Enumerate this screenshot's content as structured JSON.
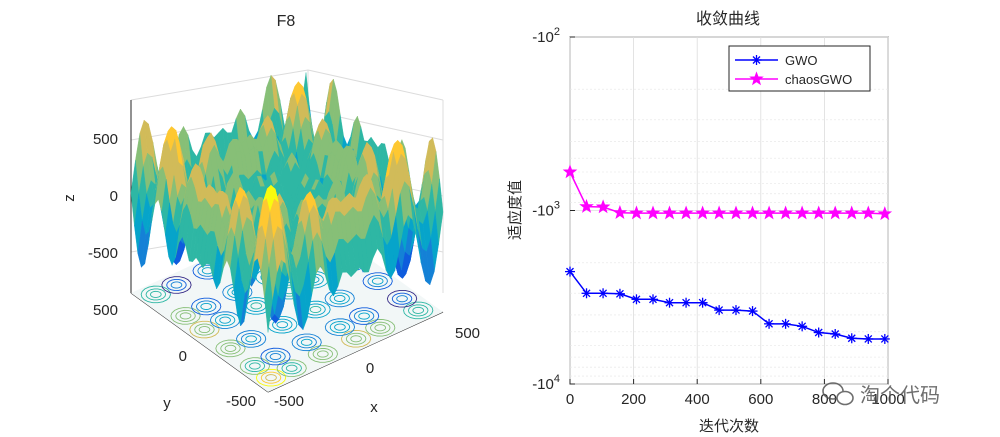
{
  "chart_data": [
    {
      "type": "surface3d",
      "title": "F8",
      "xlabel": "x",
      "ylabel": "y",
      "zlabel": "z",
      "x_ticks": [
        "-500",
        "0",
        "500"
      ],
      "y_ticks": [
        "-500",
        "0",
        "500"
      ],
      "z_ticks": [
        "-500",
        "0",
        "500"
      ],
      "xlim": [
        -500,
        500
      ],
      "ylim": [
        -500,
        500
      ],
      "zlim": [
        -800,
        800
      ],
      "colormap": [
        "#352a87",
        "#0f5cdd",
        "#1481d6",
        "#06a4ca",
        "#2eb7a4",
        "#87bf77",
        "#d1bb59",
        "#fec832",
        "#f9fb0e"
      ]
    },
    {
      "type": "line",
      "title": "收敛曲线",
      "xlabel": "迭代次数",
      "ylabel": "适应度值",
      "y_scale": "log",
      "xlim": [
        0,
        1000
      ],
      "ylim": [
        -10000,
        -100
      ],
      "x_ticks": [
        "0",
        "200",
        "400",
        "600",
        "800",
        "1000"
      ],
      "y_ticks": [
        {
          "base": "-10",
          "exp": "2"
        },
        {
          "base": "-10",
          "exp": "3"
        },
        {
          "base": "-10",
          "exp": "4"
        }
      ],
      "grid": true,
      "legend_position": "top-right",
      "x": [
        0,
        52,
        104,
        157,
        209,
        261,
        313,
        365,
        417,
        469,
        522,
        574,
        626,
        678,
        730,
        782,
        834,
        886,
        938,
        990
      ],
      "series": [
        {
          "name": "GWO",
          "color": "#0000ff",
          "marker": "*",
          "values": [
            -2250,
            -3000,
            -3000,
            -3020,
            -3250,
            -3250,
            -3400,
            -3400,
            -3400,
            -3750,
            -3750,
            -3800,
            -4500,
            -4500,
            -4650,
            -5050,
            -5150,
            -5450,
            -5500,
            -5500
          ]
        },
        {
          "name": "chaosGWO",
          "color": "#ff00ff",
          "marker": "pentagram",
          "values": [
            -600,
            -950,
            -955,
            -1030,
            -1035,
            -1035,
            -1035,
            -1035,
            -1035,
            -1035,
            -1035,
            -1035,
            -1035,
            -1035,
            -1035,
            -1035,
            -1035,
            -1035,
            -1035,
            -1045
          ]
        }
      ]
    }
  ],
  "watermark": "淘个代码"
}
